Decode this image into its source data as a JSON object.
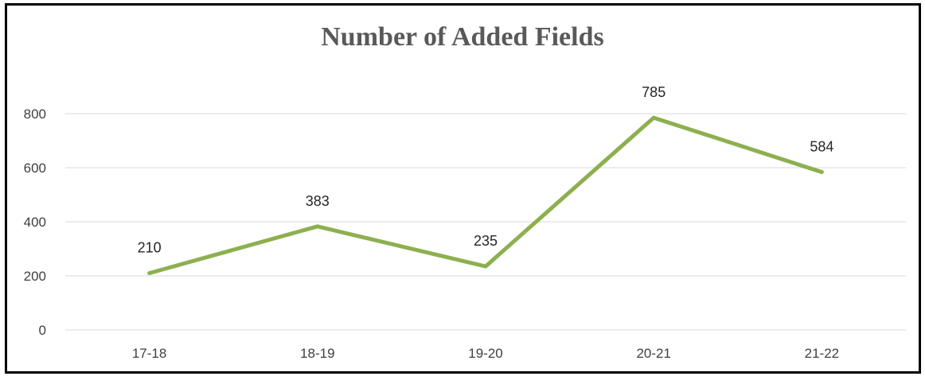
{
  "chart_data": {
    "type": "line",
    "title": "Number of Added Fields",
    "xlabel": "",
    "ylabel": "",
    "categories": [
      "17-18",
      "18-19",
      "19-20",
      "20-21",
      "21-22"
    ],
    "series": [
      {
        "values": [
          210,
          383,
          235,
          785,
          584
        ],
        "color": "#8DB04F"
      }
    ],
    "ylim": [
      0,
      800
    ],
    "yticks": [
      0,
      200,
      400,
      600,
      800
    ],
    "grid": true,
    "data_labels": true,
    "legend": "none"
  }
}
